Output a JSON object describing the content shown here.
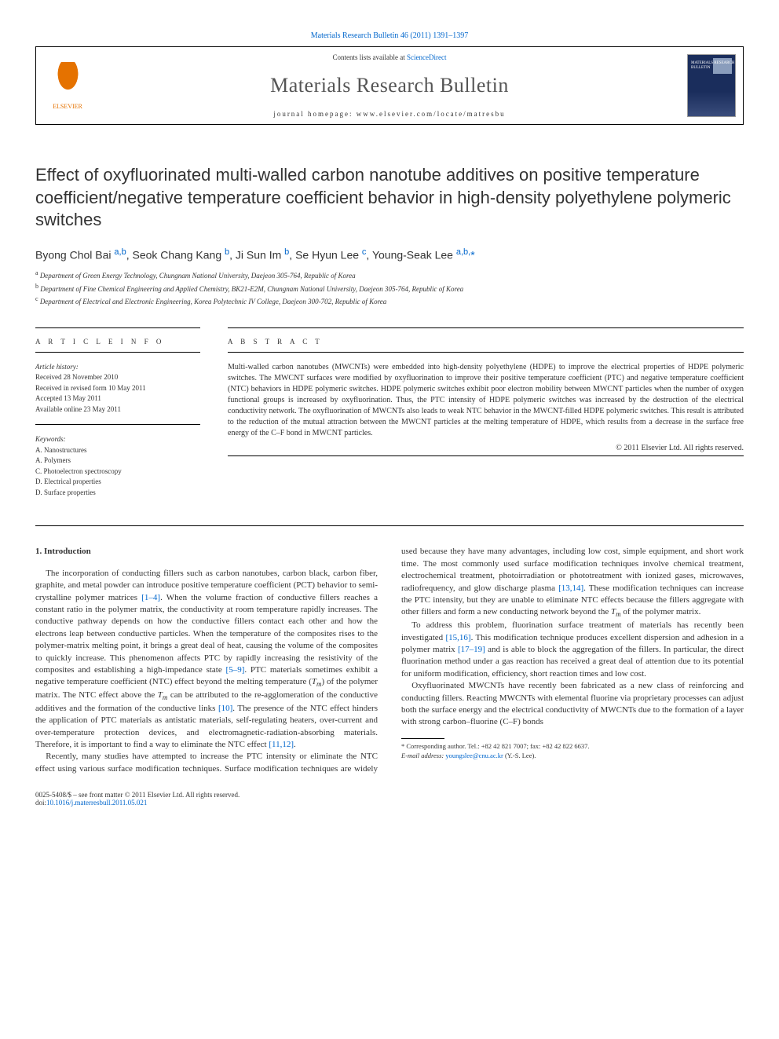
{
  "ref_line": {
    "prefix": "Materials Research Bulletin 46 (2011) 1391–1397"
  },
  "header": {
    "contents_prefix": "Contents lists available at ",
    "contents_link": "ScienceDirect",
    "journal": "Materials Research Bulletin",
    "homepage": "journal homepage: www.elsevier.com/locate/matresbu",
    "publisher": "ELSEVIER",
    "cover_label": "MATERIALS RESEARCH BULLETIN"
  },
  "title": "Effect of oxyfluorinated multi-walled carbon nanotube additives on positive temperature coefficient/negative temperature coefficient behavior in high-density polyethylene polymeric switches",
  "authors_html": "Byong Chol Bai <a>a,b</a>, Seok Chang Kang <a>b</a>, Ji Sun Im <a>b</a>, Se Hyun Lee <a>c</a>, Young-Seak Lee <a>a,b,</a><span class='star'>*</span>",
  "affiliations": [
    {
      "sup": "a",
      "text": "Department of Green Energy Technology, Chungnam National University, Daejeon 305-764, Republic of Korea"
    },
    {
      "sup": "b",
      "text": "Department of Fine Chemical Engineering and Applied Chemistry, BK21-E2M, Chungnam National University, Daejeon 305-764, Republic of Korea"
    },
    {
      "sup": "c",
      "text": "Department of Electrical and Electronic Engineering, Korea Polytechnic IV College, Daejeon 300-702, Republic of Korea"
    }
  ],
  "info": {
    "heading": "A R T I C L E   I N F O",
    "history_label": "Article history:",
    "history": [
      "Received 28 November 2010",
      "Received in revised form 10 May 2011",
      "Accepted 13 May 2011",
      "Available online 23 May 2011"
    ],
    "keywords_label": "Keywords:",
    "keywords": [
      "A. Nanostructures",
      "A. Polymers",
      "C. Photoelectron spectroscopy",
      "D. Electrical properties",
      "D. Surface properties"
    ]
  },
  "abstract": {
    "heading": "A B S T R A C T",
    "text": "Multi-walled carbon nanotubes (MWCNTs) were embedded into high-density polyethylene (HDPE) to improve the electrical properties of HDPE polymeric switches. The MWCNT surfaces were modified by oxyfluorination to improve their positive temperature coefficient (PTC) and negative temperature coefficient (NTC) behaviors in HDPE polymeric switches. HDPE polymeric switches exhibit poor electron mobility between MWCNT particles when the number of oxygen functional groups is increased by oxyfluorination. Thus, the PTC intensity of HDPE polymeric switches was increased by the destruction of the electrical conductivity network. The oxyfluorination of MWCNTs also leads to weak NTC behavior in the MWCNT-filled HDPE polymeric switches. This result is attributed to the reduction of the mutual attraction between the MWCNT particles at the melting temperature of HDPE, which results from a decrease in the surface free energy of the C–F bond in MWCNT particles.",
    "copyright": "© 2011 Elsevier Ltd. All rights reserved."
  },
  "body": {
    "heading": "1. Introduction",
    "p1": "The incorporation of conducting fillers such as carbon nanotubes, carbon black, carbon fiber, graphite, and metal powder can introduce positive temperature coefficient (PCT) behavior to semi-crystalline polymer matrices ",
    "p1_ref": "[1–4]",
    "p1b": ". When the volume fraction of conductive fillers reaches a constant ratio in the polymer matrix, the conductivity at room temperature rapidly increases. The conductive pathway depends on how the conductive fillers contact each other and how the electrons leap between conductive particles. When the temperature of the composites rises to the polymer-matrix melting point, it brings a great deal of heat, causing the volume of the composites to quickly increase. This phenomenon affects PTC by rapidly increasing the resistivity of the composites and establishing a high-impedance state ",
    "p1_ref2": "[5–9]",
    "p1c": ". PTC materials sometimes exhibit a negative temperature coefficient (NTC) effect beyond the melting temperature (",
    "tm1": "T",
    "tm1s": "m",
    "p1d": ") of the polymer matrix. The NTC effect above the ",
    "tm2": "T",
    "tm2s": "m",
    "p1e": " can be attributed to the re-agglomeration of the conductive additives and the formation of the conductive links ",
    "p1_ref3": "[10]",
    "p1f": ". The presence of the NTC effect hinders the application of PTC materials as antistatic materials, self-regulating heaters, over-current and over-temperature protection devices, and electromagnetic-radiation-absorbing materials. Therefore, it is important to find a way to eliminate the NTC effect ",
    "p1_ref4": "[11,12]",
    "p1g": ".",
    "p2a": "Recently, many studies have attempted to increase the PTC intensity or eliminate the NTC effect using various surface modification techniques. Surface modification techniques are widely used because they have many advantages, including low cost, simple equipment, and short work time. The most commonly used surface modification techniques involve chemical treatment, electrochemical treatment, photoirradiation or phototreatment with ionized gases, microwaves, radiofrequency, and glow discharge plasma ",
    "p2_ref": "[13,14]",
    "p2b": ". These modification techniques can increase the PTC intensity, but they are unable to eliminate NTC effects because the fillers aggregate with other fillers and form a new conducting network beyond the ",
    "tm3": "T",
    "tm3s": "m",
    "p2c": " of the polymer matrix.",
    "p3a": "To address this problem, fluorination surface treatment of materials has recently been investigated ",
    "p3_ref": "[15,16]",
    "p3b": ". This modification technique produces excellent dispersion and adhesion in a polymer matrix ",
    "p3_ref2": "[17–19]",
    "p3c": " and is able to block the aggregation of the fillers. In particular, the direct fluorination method under a gas reaction has received a great deal of attention due to its potential for uniform modification, efficiency, short reaction times and low cost.",
    "p4": "Oxyfluorinated MWCNTs have recently been fabricated as a new class of reinforcing and conducting fillers. Reacting MWCNTs with elemental fluorine via proprietary processes can adjust both the surface energy and the electrical conductivity of MWCNTs due to the formation of a layer with strong carbon–fluorine (C–F) bonds"
  },
  "footnote": {
    "corr": "* Corresponding author. Tel.: +82 42 821 7007; fax: +82 42 822 6637.",
    "email_label": "E-mail address: ",
    "email": "youngslee@cnu.ac.kr",
    "email_suffix": " (Y.-S. Lee)."
  },
  "footer": {
    "left1": "0025-5408/$ – see front matter © 2011 Elsevier Ltd. All rights reserved.",
    "left2_prefix": "doi:",
    "left2_link": "10.1016/j.materresbull.2011.05.021"
  }
}
